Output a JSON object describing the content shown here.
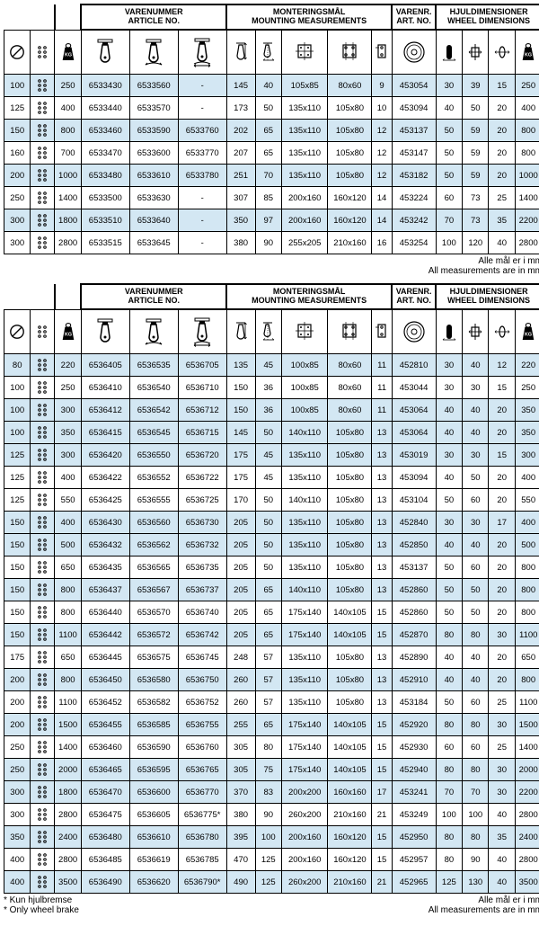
{
  "hdr": {
    "article": "VARENUMMER\nARTICLE NO.",
    "mount": "MONTERINGSMÅL\nMOUNTING MEASUREMENTS",
    "art": "VARENR.\nART. NO.",
    "wheel": "HJULDIMENSIONER\nWHEEL DIMENSIONS"
  },
  "foot": {
    "mm1": "Alle mål er i mm",
    "mm2": "All measurements are in mm",
    "b1": "* Kun hjulbremse",
    "b2": "* Only wheel brake"
  },
  "cols": [
    24,
    22,
    24,
    44,
    44,
    44,
    26,
    24,
    42,
    40,
    18,
    40,
    24,
    24,
    24,
    24
  ],
  "t1": [
    [
      "100",
      "",
      "250",
      "6533430",
      "6533560",
      "-",
      "145",
      "40",
      "105x85",
      "80x60",
      "9",
      "453054",
      "30",
      "39",
      "15",
      "250"
    ],
    [
      "125",
      "",
      "400",
      "6533440",
      "6533570",
      "-",
      "173",
      "50",
      "135x110",
      "105x80",
      "10",
      "453094",
      "40",
      "50",
      "20",
      "400"
    ],
    [
      "150",
      "",
      "800",
      "6533460",
      "6533590",
      "6533760",
      "202",
      "65",
      "135x110",
      "105x80",
      "12",
      "453137",
      "50",
      "59",
      "20",
      "800"
    ],
    [
      "160",
      "",
      "700",
      "6533470",
      "6533600",
      "6533770",
      "207",
      "65",
      "135x110",
      "105x80",
      "12",
      "453147",
      "50",
      "59",
      "20",
      "800"
    ],
    [
      "200",
      "",
      "1000",
      "6533480",
      "6533610",
      "6533780",
      "251",
      "70",
      "135x110",
      "105x80",
      "12",
      "453182",
      "50",
      "59",
      "20",
      "1000"
    ],
    [
      "250",
      "",
      "1400",
      "6533500",
      "6533630",
      "-",
      "307",
      "85",
      "200x160",
      "160x120",
      "14",
      "453224",
      "60",
      "73",
      "25",
      "1400"
    ],
    [
      "300",
      "",
      "1800",
      "6533510",
      "6533640",
      "-",
      "350",
      "97",
      "200x160",
      "160x120",
      "14",
      "453242",
      "70",
      "73",
      "35",
      "2200"
    ],
    [
      "300",
      "",
      "2800",
      "6533515",
      "6533645",
      "-",
      "380",
      "90",
      "255x205",
      "210x160",
      "16",
      "453254",
      "100",
      "120",
      "40",
      "2800"
    ]
  ],
  "t2": [
    [
      "80",
      "",
      "220",
      "6536405",
      "6536535",
      "6536705",
      "135",
      "45",
      "100x85",
      "80x60",
      "11",
      "452810",
      "30",
      "40",
      "12",
      "220"
    ],
    [
      "100",
      "",
      "250",
      "6536410",
      "6536540",
      "6536710",
      "150",
      "36",
      "100x85",
      "80x60",
      "11",
      "453044",
      "30",
      "30",
      "15",
      "250"
    ],
    [
      "100",
      "",
      "300",
      "6536412",
      "6536542",
      "6536712",
      "150",
      "36",
      "100x85",
      "80x60",
      "11",
      "453064",
      "40",
      "40",
      "20",
      "350"
    ],
    [
      "100",
      "",
      "350",
      "6536415",
      "6536545",
      "6536715",
      "145",
      "50",
      "140x110",
      "105x80",
      "13",
      "453064",
      "40",
      "40",
      "20",
      "350"
    ],
    [
      "125",
      "",
      "300",
      "6536420",
      "6536550",
      "6536720",
      "175",
      "45",
      "135x110",
      "105x80",
      "13",
      "453019",
      "30",
      "30",
      "15",
      "300"
    ],
    [
      "125",
      "",
      "400",
      "6536422",
      "6536552",
      "6536722",
      "175",
      "45",
      "135x110",
      "105x80",
      "13",
      "453094",
      "40",
      "50",
      "20",
      "400"
    ],
    [
      "125",
      "",
      "550",
      "6536425",
      "6536555",
      "6536725",
      "170",
      "50",
      "140x110",
      "105x80",
      "13",
      "453104",
      "50",
      "60",
      "20",
      "550"
    ],
    [
      "150",
      "",
      "400",
      "6536430",
      "6536560",
      "6536730",
      "205",
      "50",
      "135x110",
      "105x80",
      "13",
      "452840",
      "30",
      "30",
      "17",
      "400"
    ],
    [
      "150",
      "",
      "500",
      "6536432",
      "6536562",
      "6536732",
      "205",
      "50",
      "135x110",
      "105x80",
      "13",
      "452850",
      "40",
      "40",
      "20",
      "500"
    ],
    [
      "150",
      "",
      "650",
      "6536435",
      "6536565",
      "6536735",
      "205",
      "50",
      "135x110",
      "105x80",
      "13",
      "453137",
      "50",
      "60",
      "20",
      "800"
    ],
    [
      "150",
      "",
      "800",
      "6536437",
      "6536567",
      "6536737",
      "205",
      "65",
      "140x110",
      "105x80",
      "13",
      "452860",
      "50",
      "50",
      "20",
      "800"
    ],
    [
      "150",
      "",
      "800",
      "6536440",
      "6536570",
      "6536740",
      "205",
      "65",
      "175x140",
      "140x105",
      "15",
      "452860",
      "50",
      "50",
      "20",
      "800"
    ],
    [
      "150",
      "",
      "1100",
      "6536442",
      "6536572",
      "6536742",
      "205",
      "65",
      "175x140",
      "140x105",
      "15",
      "452870",
      "80",
      "80",
      "30",
      "1100"
    ],
    [
      "175",
      "",
      "650",
      "6536445",
      "6536575",
      "6536745",
      "248",
      "57",
      "135x110",
      "105x80",
      "13",
      "452890",
      "40",
      "40",
      "20",
      "650"
    ],
    [
      "200",
      "",
      "800",
      "6536450",
      "6536580",
      "6536750",
      "260",
      "57",
      "135x110",
      "105x80",
      "13",
      "452910",
      "40",
      "40",
      "20",
      "800"
    ],
    [
      "200",
      "",
      "1100",
      "6536452",
      "6536582",
      "6536752",
      "260",
      "57",
      "135x110",
      "105x80",
      "13",
      "453184",
      "50",
      "60",
      "25",
      "1100"
    ],
    [
      "200",
      "",
      "1500",
      "6536455",
      "6536585",
      "6536755",
      "255",
      "65",
      "175x140",
      "140x105",
      "15",
      "452920",
      "80",
      "80",
      "30",
      "1500"
    ],
    [
      "250",
      "",
      "1400",
      "6536460",
      "6536590",
      "6536760",
      "305",
      "80",
      "175x140",
      "140x105",
      "15",
      "452930",
      "60",
      "60",
      "25",
      "1400"
    ],
    [
      "250",
      "",
      "2000",
      "6536465",
      "6536595",
      "6536765",
      "305",
      "75",
      "175x140",
      "140x105",
      "15",
      "452940",
      "80",
      "80",
      "30",
      "2000"
    ],
    [
      "300",
      "",
      "1800",
      "6536470",
      "6536600",
      "6536770",
      "370",
      "83",
      "200x200",
      "160x160",
      "17",
      "453241",
      "70",
      "70",
      "30",
      "2200"
    ],
    [
      "300",
      "",
      "2800",
      "6536475",
      "6536605",
      "6536775*",
      "380",
      "90",
      "260x200",
      "210x160",
      "21",
      "453249",
      "100",
      "100",
      "40",
      "2800"
    ],
    [
      "350",
      "",
      "2400",
      "6536480",
      "6536610",
      "6536780",
      "395",
      "100",
      "200x160",
      "160x120",
      "15",
      "452950",
      "80",
      "80",
      "35",
      "2400"
    ],
    [
      "400",
      "",
      "2800",
      "6536485",
      "6536619",
      "6536785",
      "470",
      "125",
      "200x160",
      "160x120",
      "15",
      "452957",
      "80",
      "90",
      "40",
      "2800"
    ],
    [
      "400",
      "",
      "3500",
      "6536490",
      "6536620",
      "6536790*",
      "490",
      "125",
      "260x200",
      "210x160",
      "21",
      "452965",
      "125",
      "130",
      "40",
      "3500"
    ]
  ],
  "alt1": [
    0,
    2,
    4,
    6
  ],
  "alt2": [
    0,
    2,
    3,
    4,
    7,
    8,
    10,
    12,
    14,
    16,
    18,
    19,
    21,
    23
  ]
}
